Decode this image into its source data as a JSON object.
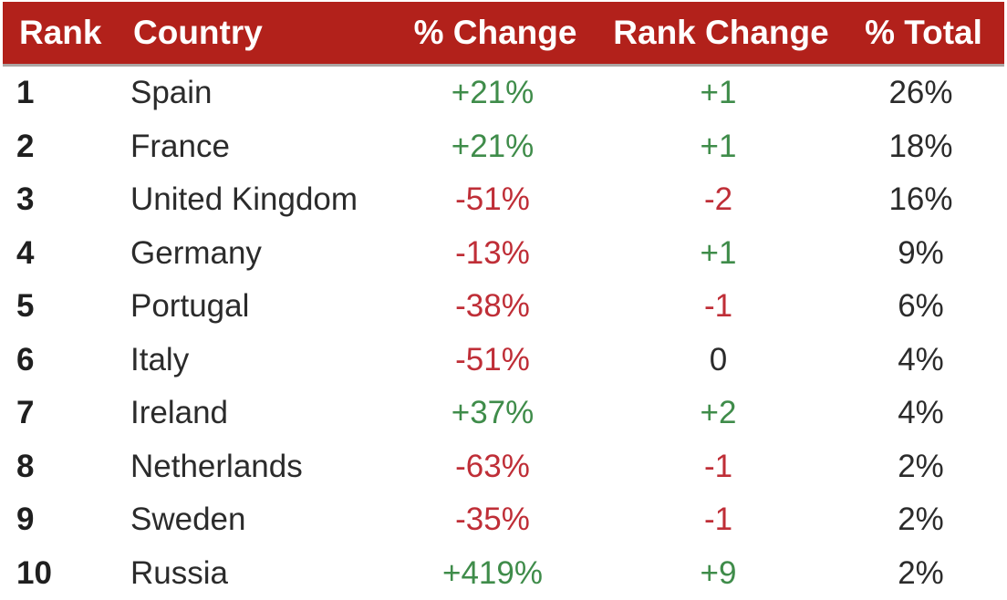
{
  "colors": {
    "header_bg": "#B2211B",
    "header_text": "#FFFFFF",
    "positive_text": "#3F8C4A",
    "negative_text": "#BF2E37",
    "body_text": "#2B2B2B"
  },
  "table": {
    "columns": [
      {
        "key": "rank",
        "label": "Rank"
      },
      {
        "key": "country",
        "label": "Country"
      },
      {
        "key": "pct_change",
        "label": "% Change"
      },
      {
        "key": "rank_change",
        "label": "Rank Change"
      },
      {
        "key": "pct_total",
        "label": "% Total"
      }
    ],
    "rows": [
      {
        "rank": "1",
        "country": "Spain",
        "pct_change": "+21%",
        "pct_change_sentiment": "positive",
        "rank_change": "+1",
        "rank_change_sentiment": "positive",
        "pct_total": "26%"
      },
      {
        "rank": "2",
        "country": "France",
        "pct_change": "+21%",
        "pct_change_sentiment": "positive",
        "rank_change": "+1",
        "rank_change_sentiment": "positive",
        "pct_total": "18%"
      },
      {
        "rank": "3",
        "country": "United Kingdom",
        "pct_change": "-51%",
        "pct_change_sentiment": "negative",
        "rank_change": "-2",
        "rank_change_sentiment": "negative",
        "pct_total": "16%"
      },
      {
        "rank": "4",
        "country": "Germany",
        "pct_change": "-13%",
        "pct_change_sentiment": "negative",
        "rank_change": "+1",
        "rank_change_sentiment": "positive",
        "pct_total": "9%"
      },
      {
        "rank": "5",
        "country": "Portugal",
        "pct_change": "-38%",
        "pct_change_sentiment": "negative",
        "rank_change": "-1",
        "rank_change_sentiment": "negative",
        "pct_total": "6%"
      },
      {
        "rank": "6",
        "country": "Italy",
        "pct_change": "-51%",
        "pct_change_sentiment": "negative",
        "rank_change": "0",
        "rank_change_sentiment": "neutral",
        "pct_total": "4%"
      },
      {
        "rank": "7",
        "country": "Ireland",
        "pct_change": "+37%",
        "pct_change_sentiment": "positive",
        "rank_change": "+2",
        "rank_change_sentiment": "positive",
        "pct_total": "4%"
      },
      {
        "rank": "8",
        "country": "Netherlands",
        "pct_change": "-63%",
        "pct_change_sentiment": "negative",
        "rank_change": "-1",
        "rank_change_sentiment": "negative",
        "pct_total": "2%"
      },
      {
        "rank": "9",
        "country": "Sweden",
        "pct_change": "-35%",
        "pct_change_sentiment": "negative",
        "rank_change": "-1",
        "rank_change_sentiment": "negative",
        "pct_total": "2%"
      },
      {
        "rank": "10",
        "country": "Russia",
        "pct_change": "+419%",
        "pct_change_sentiment": "positive",
        "rank_change": "+9",
        "rank_change_sentiment": "positive",
        "pct_total": "2%"
      }
    ]
  },
  "chart_data": {
    "type": "table",
    "title": "",
    "columns": [
      "Rank",
      "Country",
      "% Change",
      "Rank Change",
      "% Total"
    ],
    "rows": [
      [
        1,
        "Spain",
        "+21%",
        "+1",
        "26%"
      ],
      [
        2,
        "France",
        "+21%",
        "+1",
        "18%"
      ],
      [
        3,
        "United Kingdom",
        "-51%",
        "-2",
        "16%"
      ],
      [
        4,
        "Germany",
        "-13%",
        "+1",
        "9%"
      ],
      [
        5,
        "Portugal",
        "-38%",
        "-1",
        "6%"
      ],
      [
        6,
        "Italy",
        "-51%",
        "0",
        "4%"
      ],
      [
        7,
        "Ireland",
        "+37%",
        "+2",
        "4%"
      ],
      [
        8,
        "Netherlands",
        "-63%",
        "-1",
        "2%"
      ],
      [
        9,
        "Sweden",
        "-35%",
        "-1",
        "2%"
      ],
      [
        10,
        "Russia",
        "+419%",
        "+9",
        "2%"
      ]
    ],
    "layout_hints": {
      "header_background": "#B2211B",
      "positive_value_color": "#3F8C4A",
      "negative_value_color": "#BF2E37",
      "grid": "off"
    }
  }
}
